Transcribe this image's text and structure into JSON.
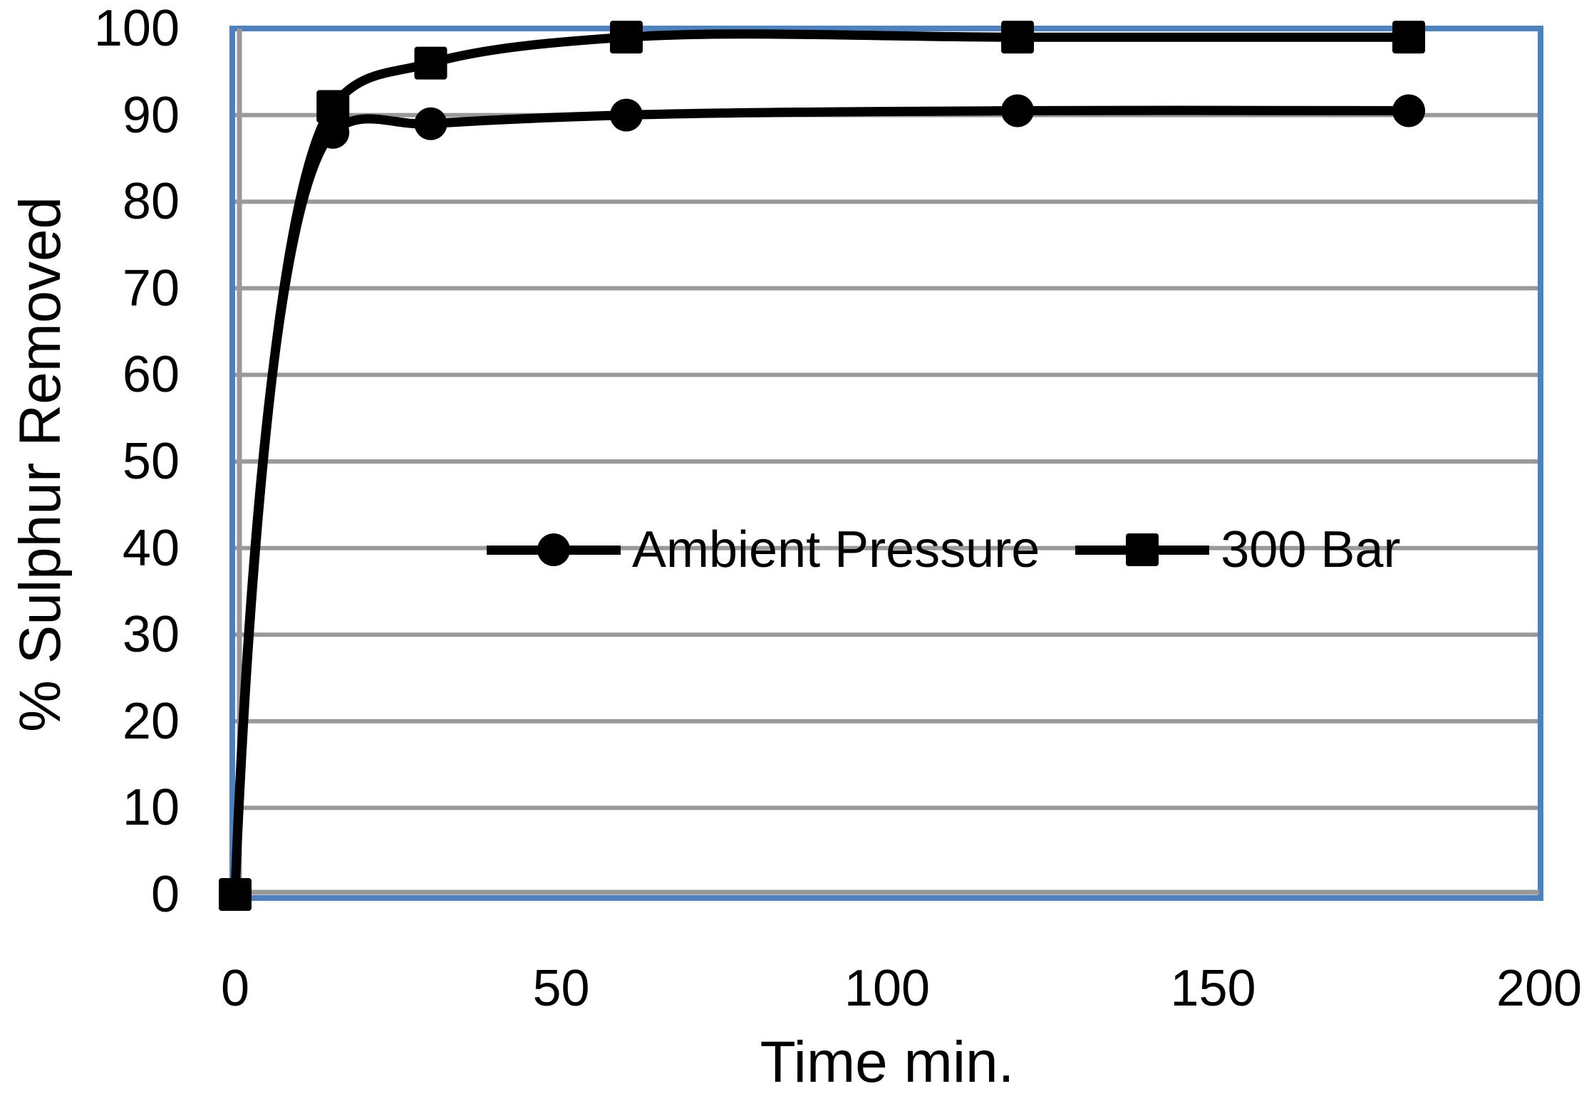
{
  "chart_data": {
    "type": "line",
    "title": "",
    "xlabel": "Time min.",
    "ylabel": "% Sulphur Removed",
    "xlim": [
      0,
      200
    ],
    "ylim": [
      0,
      100
    ],
    "xticks": [
      0,
      50,
      100,
      150,
      200
    ],
    "yticks": [
      0,
      10,
      20,
      30,
      40,
      50,
      60,
      70,
      80,
      90,
      100
    ],
    "grid": "horizontal-only",
    "legend_position": "inside-center",
    "line_smoothing": "smooth",
    "series": [
      {
        "name": "Ambient Pressure",
        "marker": "circle",
        "color": "#000000",
        "points": [
          [
            0,
            0
          ],
          [
            15,
            88
          ],
          [
            30,
            89
          ],
          [
            60,
            90
          ],
          [
            120,
            90.5
          ],
          [
            180,
            90.5
          ]
        ]
      },
      {
        "name": "300 Bar",
        "marker": "square",
        "color": "#000000",
        "points": [
          [
            0,
            0
          ],
          [
            15,
            91
          ],
          [
            30,
            96
          ],
          [
            60,
            99
          ],
          [
            120,
            99
          ],
          [
            180,
            99
          ]
        ]
      }
    ]
  },
  "colors": {
    "plot_border": "#4f81bd",
    "axis_line": "#999999",
    "gridline": "#999999",
    "series": "#000000",
    "background": "#ffffff"
  }
}
